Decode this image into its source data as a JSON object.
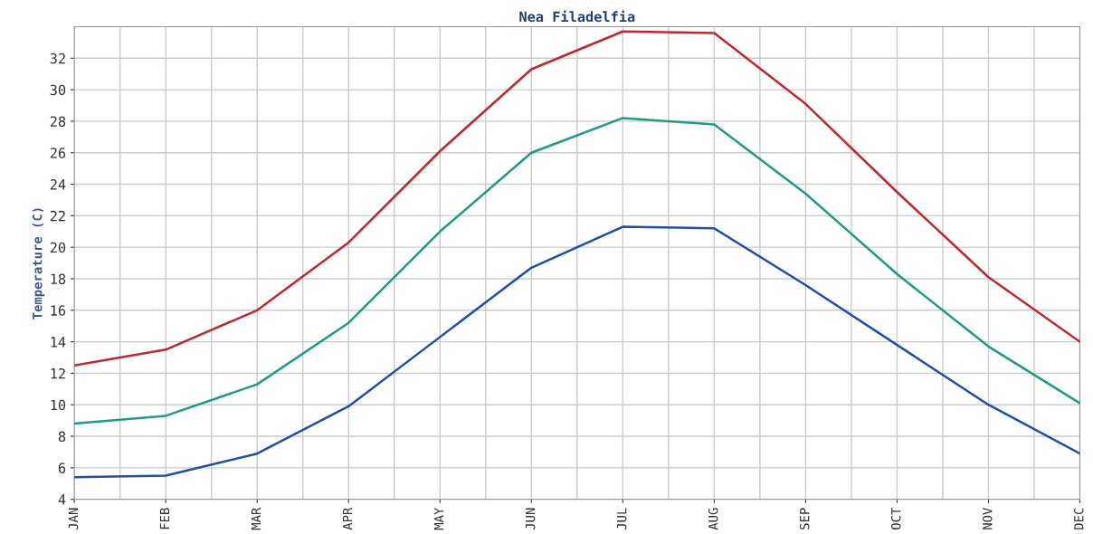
{
  "chart_data": {
    "type": "line",
    "title": "Nea Filadelfia",
    "ylabel": "Temperature (C)",
    "categories": [
      "JAN",
      "FEB",
      "MAR",
      "APR",
      "MAY",
      "JUN",
      "JUL",
      "AUG",
      "SEP",
      "OCT",
      "NOV",
      "DEC"
    ],
    "series": [
      {
        "color": "#c0282d",
        "values": [
          12.5,
          13.5,
          16.0,
          20.3,
          26.1,
          31.3,
          33.7,
          33.6,
          29.1,
          23.5,
          18.1,
          14.0
        ]
      },
      {
        "color": "#1f9a86",
        "values": [
          8.8,
          9.3,
          11.3,
          15.2,
          21.0,
          26.0,
          28.2,
          27.8,
          23.4,
          18.3,
          13.7,
          10.1
        ]
      },
      {
        "color": "#1f4fa8",
        "values": [
          5.4,
          5.5,
          6.9,
          9.9,
          14.3,
          18.7,
          21.3,
          21.2,
          17.6,
          13.8,
          10.0,
          6.9
        ]
      }
    ],
    "ylim": [
      4,
      34
    ],
    "yticks": [
      4,
      6,
      8,
      10,
      12,
      14,
      16,
      18,
      20,
      22,
      24,
      26,
      28,
      30,
      32
    ],
    "grid": true,
    "legend": false,
    "marker": "none",
    "line_style": "solid"
  }
}
